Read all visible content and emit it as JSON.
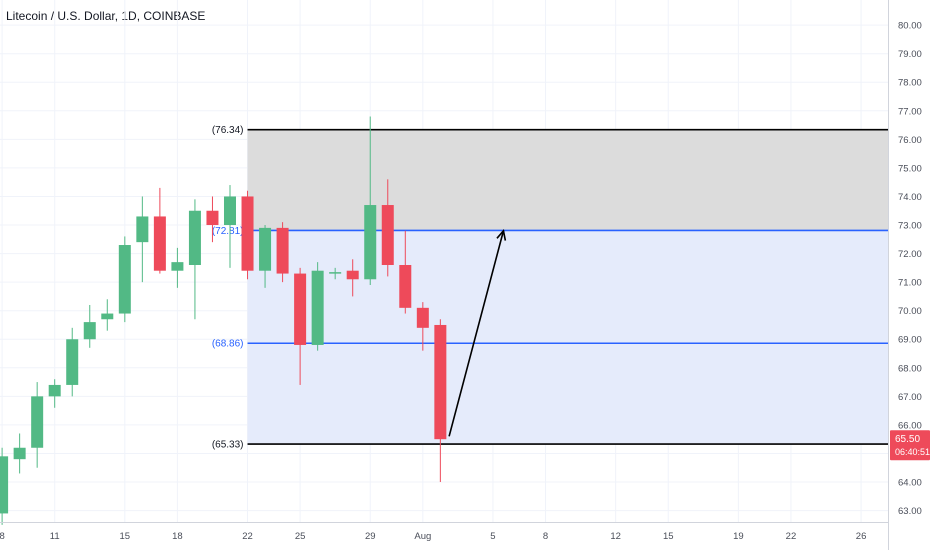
{
  "header": {
    "title": "Litecoin / U.S. Dollar, 1D, COINBASE"
  },
  "colors": {
    "up": "#52b985",
    "down": "#ee4a5a",
    "level_black": "#000000",
    "level_blue": "#2962ff",
    "zone_upper": "#dcdcdc",
    "zone_lower": "#e5ebfb",
    "grid": "#f0f3fa",
    "arrow": "#000000"
  },
  "price_badge": {
    "price": "65.50",
    "countdown": "06:40:51",
    "color": "#ee4a5a"
  },
  "chart_data": {
    "type": "candlestick",
    "title": "Litecoin / U.S. Dollar, 1D, COINBASE",
    "ylim": [
      62.6,
      80.6
    ],
    "y_ticks": [
      "63.00",
      "64.00",
      "65.00",
      "66.00",
      "67.00",
      "68.00",
      "69.00",
      "70.00",
      "71.00",
      "72.00",
      "73.00",
      "74.00",
      "75.00",
      "76.00",
      "77.00",
      "78.00",
      "79.00",
      "80.00"
    ],
    "x_ticks": [
      {
        "label": "8",
        "day": 8
      },
      {
        "label": "11",
        "day": 11
      },
      {
        "label": "15",
        "day": 15
      },
      {
        "label": "18",
        "day": 18
      },
      {
        "label": "22",
        "day": 22
      },
      {
        "label": "25",
        "day": 25
      },
      {
        "label": "29",
        "day": 29
      },
      {
        "label": "Aug",
        "day": 32
      },
      {
        "label": "5",
        "day": 36
      },
      {
        "label": "8",
        "day": 39
      },
      {
        "label": "12",
        "day": 43
      },
      {
        "label": "15",
        "day": 46
      },
      {
        "label": "19",
        "day": 50
      },
      {
        "label": "22",
        "day": 53
      },
      {
        "label": "26",
        "day": 57
      }
    ],
    "candles": [
      {
        "day": 8,
        "o": 62.9,
        "h": 65.2,
        "l": 62.5,
        "c": 64.9
      },
      {
        "day": 9,
        "o": 64.8,
        "h": 65.7,
        "l": 64.3,
        "c": 65.2
      },
      {
        "day": 10,
        "o": 65.2,
        "h": 67.5,
        "l": 64.5,
        "c": 67.0
      },
      {
        "day": 11,
        "o": 67.0,
        "h": 67.6,
        "l": 66.6,
        "c": 67.4
      },
      {
        "day": 12,
        "o": 67.4,
        "h": 69.4,
        "l": 67.0,
        "c": 69.0
      },
      {
        "day": 13,
        "o": 69.0,
        "h": 70.2,
        "l": 68.7,
        "c": 69.6
      },
      {
        "day": 14,
        "o": 69.7,
        "h": 70.4,
        "l": 69.3,
        "c": 69.9
      },
      {
        "day": 15,
        "o": 69.9,
        "h": 72.6,
        "l": 69.6,
        "c": 72.3
      },
      {
        "day": 16,
        "o": 72.4,
        "h": 74.0,
        "l": 71.0,
        "c": 73.3
      },
      {
        "day": 17,
        "o": 73.3,
        "h": 74.3,
        "l": 71.3,
        "c": 71.4
      },
      {
        "day": 18,
        "o": 71.4,
        "h": 72.2,
        "l": 70.8,
        "c": 71.7
      },
      {
        "day": 19,
        "o": 71.6,
        "h": 73.9,
        "l": 69.7,
        "c": 73.5
      },
      {
        "day": 20,
        "o": 73.5,
        "h": 74.0,
        "l": 72.4,
        "c": 73.0
      },
      {
        "day": 21,
        "o": 73.0,
        "h": 74.4,
        "l": 71.5,
        "c": 74.0
      },
      {
        "day": 22,
        "o": 74.0,
        "h": 74.2,
        "l": 71.1,
        "c": 71.4
      },
      {
        "day": 23,
        "o": 71.4,
        "h": 73.0,
        "l": 70.8,
        "c": 72.9
      },
      {
        "day": 24,
        "o": 72.9,
        "h": 73.1,
        "l": 71.0,
        "c": 71.3
      },
      {
        "day": 25,
        "o": 71.3,
        "h": 71.5,
        "l": 67.4,
        "c": 68.8
      },
      {
        "day": 26,
        "o": 68.8,
        "h": 71.7,
        "l": 68.6,
        "c": 71.4
      },
      {
        "day": 27,
        "o": 71.3,
        "h": 71.5,
        "l": 71.1,
        "c": 71.35
      },
      {
        "day": 28,
        "o": 71.4,
        "h": 71.8,
        "l": 70.5,
        "c": 71.1
      },
      {
        "day": 29,
        "o": 71.1,
        "h": 76.8,
        "l": 70.9,
        "c": 73.7
      },
      {
        "day": 30,
        "o": 73.7,
        "h": 74.6,
        "l": 71.2,
        "c": 71.6
      },
      {
        "day": 31,
        "o": 71.6,
        "h": 72.8,
        "l": 69.9,
        "c": 70.1
      },
      {
        "day": 32,
        "o": 70.1,
        "h": 70.3,
        "l": 68.6,
        "c": 69.4
      },
      {
        "day": 33,
        "o": 69.5,
        "h": 69.7,
        "l": 64.0,
        "c": 65.5
      }
    ],
    "levels": [
      {
        "value": 76.34,
        "label": "(76.34)",
        "color": "#000000"
      },
      {
        "value": 72.81,
        "label": "(72.81)",
        "color": "#2962ff"
      },
      {
        "value": 68.86,
        "label": "(68.86)",
        "color": "#2962ff"
      },
      {
        "value": 65.33,
        "label": "(65.33)",
        "color": "#000000"
      }
    ],
    "zones": [
      {
        "from": 72.81,
        "to": 76.34,
        "color": "#dcdcdc"
      },
      {
        "from": 65.33,
        "to": 72.81,
        "color": "#e5ebfb"
      }
    ],
    "zone_start_day": 22,
    "arrow": {
      "from": {
        "day": 33.5,
        "price": 65.6
      },
      "to": {
        "day": 36.6,
        "price": 72.8
      }
    },
    "current_price": 65.5
  }
}
